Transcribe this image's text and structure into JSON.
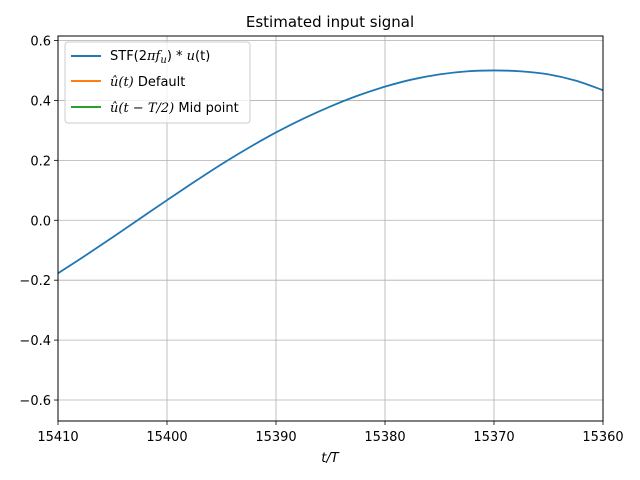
{
  "chart_data": {
    "type": "line",
    "title": "Estimated input signal",
    "xlabel": "t/T",
    "ylabel": "",
    "xlim": [
      15410,
      15360
    ],
    "ylim": [
      -0.67,
      0.615
    ],
    "x_ticks": [
      15410,
      15400,
      15390,
      15380,
      15370,
      15360
    ],
    "y_ticks": [
      -0.6,
      -0.4,
      -0.2,
      0.0,
      0.2,
      0.4,
      0.6
    ],
    "x_tick_labels": [
      "15410",
      "15400",
      "15390",
      "15380",
      "15370",
      "15360"
    ],
    "y_tick_labels": [
      "−0.6",
      "−0.4",
      "−0.2",
      "0.0",
      "0.2",
      "0.4",
      "0.6"
    ],
    "grid": true,
    "legend_position": "top-left",
    "series": [
      {
        "name": "STF(2πf_u) * u(t)",
        "color": "#1f77b4",
        "x": [
          15410,
          15407.5,
          15405,
          15402.5,
          15400,
          15397.5,
          15395,
          15392.5,
          15390,
          15387.5,
          15385,
          15382.5,
          15380,
          15377.5,
          15375,
          15372.5,
          15370,
          15367.5,
          15365,
          15362.5,
          15360
        ],
        "y": [
          -0.177,
          -0.118,
          -0.057,
          0.005,
          0.067,
          0.128,
          0.187,
          0.242,
          0.293,
          0.339,
          0.38,
          0.416,
          0.446,
          0.47,
          0.487,
          0.497,
          0.5,
          0.497,
          0.487,
          0.466,
          0.434
        ]
      },
      {
        "name": "û(t) Default",
        "color": "#ff7f0e",
        "x": [],
        "y": []
      },
      {
        "name": "û(t − T/2) Mid point",
        "color": "#2ca02c",
        "x": [],
        "y": []
      }
    ]
  },
  "legend": {
    "items": [
      {
        "prefix": "STF(2",
        "math": "πf",
        "sub": "u",
        "suffix": ") * ",
        "math2": "u",
        "tail": "(t)"
      },
      {
        "hat": "û",
        "math": "(t)",
        "suffix": " Default"
      },
      {
        "hat": "û",
        "math": "(t − T/2)",
        "suffix": " Mid point"
      }
    ]
  }
}
